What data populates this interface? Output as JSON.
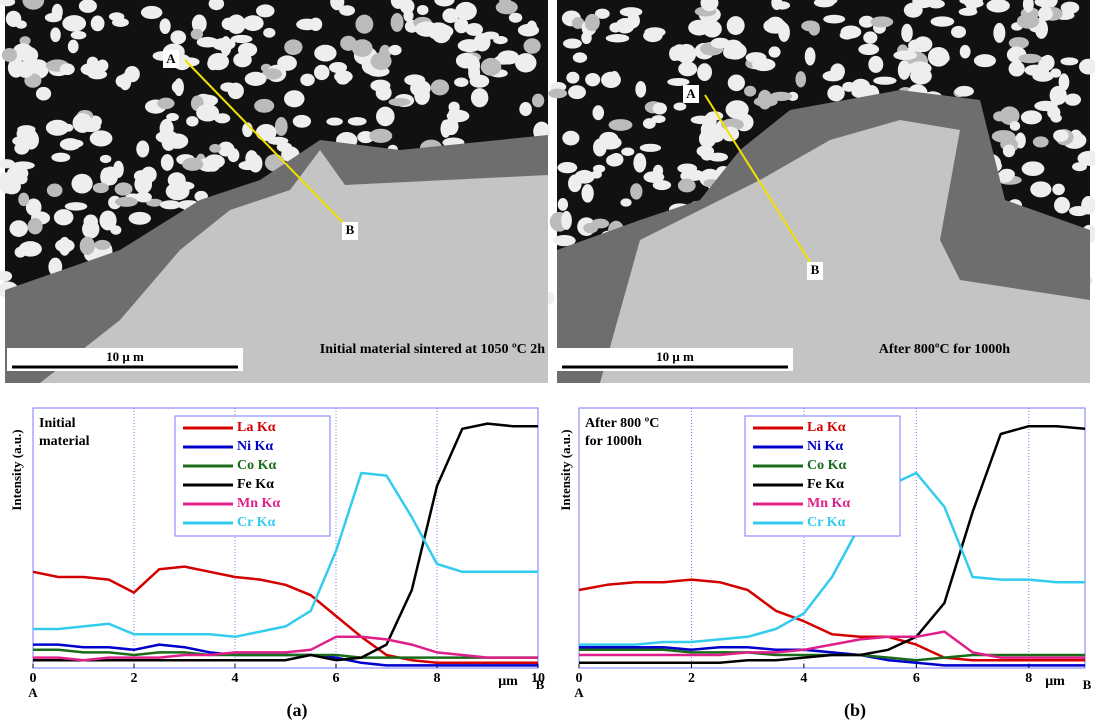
{
  "images": [
    {
      "caption": "Initial material sintered at 1050 ºC 2h",
      "scale_label": "10 μ m",
      "point_a": "A",
      "point_b": "B"
    },
    {
      "caption": "After 800ºC for 1000h",
      "scale_label": "10 μ m",
      "point_a": "A",
      "point_b": "B"
    }
  ],
  "panels": [
    "(a)",
    "(b)"
  ],
  "chart_data": [
    {
      "type": "line",
      "ylabel": "Intensity (a.u.)",
      "xlabel": "μm",
      "x_start": "A",
      "x_end": "B",
      "annotation": [
        "Initial",
        "material"
      ],
      "x": [
        0,
        0.5,
        1,
        1.5,
        2,
        2.5,
        3,
        3.5,
        4,
        4.5,
        5,
        5.5,
        6,
        6.5,
        7,
        7.5,
        8,
        8.5,
        9,
        9.5,
        10
      ],
      "xlim": [
        0,
        10
      ],
      "xticks": [
        0,
        2,
        4,
        6,
        8,
        10
      ],
      "ylim": [
        0,
        100
      ],
      "grid": true,
      "series": [
        {
          "name": "La Kα",
          "color": "#d40000",
          "values": [
            37,
            35,
            35,
            34,
            29,
            38,
            39,
            37,
            35,
            34,
            32,
            28,
            20,
            12,
            5,
            3,
            2,
            2,
            2,
            2,
            2
          ]
        },
        {
          "name": "Ni Kα",
          "color": "#0000cc",
          "values": [
            9,
            9,
            8,
            8,
            7,
            9,
            8,
            6,
            5,
            5,
            5,
            5,
            4,
            2,
            1,
            1,
            1,
            1,
            1,
            1,
            1
          ]
        },
        {
          "name": "Co Kα",
          "color": "#1a6b1a",
          "values": [
            7,
            7,
            6,
            6,
            5,
            6,
            6,
            5,
            5,
            5,
            5,
            5,
            5,
            4,
            4,
            4,
            4,
            4,
            4,
            4,
            4
          ]
        },
        {
          "name": "Fe Kα",
          "color": "#000000",
          "values": [
            3,
            3,
            3,
            3,
            3,
            3,
            3,
            3,
            3,
            3,
            3,
            5,
            3,
            4,
            9,
            30,
            70,
            92,
            94,
            93,
            93
          ]
        },
        {
          "name": "Mn Kα",
          "color": "#e0208a",
          "values": [
            4,
            4,
            3,
            4,
            4,
            4,
            5,
            5,
            6,
            6,
            6,
            7,
            12,
            12,
            11,
            9,
            6,
            5,
            4,
            4,
            4
          ]
        },
        {
          "name": "Cr Kα",
          "color": "#33ccee",
          "values": [
            15,
            15,
            16,
            17,
            13,
            13,
            13,
            13,
            12,
            14,
            16,
            22,
            45,
            75,
            74,
            58,
            40,
            37,
            37,
            37,
            37
          ]
        }
      ]
    },
    {
      "type": "line",
      "ylabel": "Intensity (a.u.)",
      "xlabel": "μm",
      "x_start": "A",
      "x_end": "B",
      "annotation": [
        "After 800 ºC",
        "for 1000h"
      ],
      "x": [
        0,
        0.5,
        1,
        1.5,
        2,
        2.5,
        3,
        3.5,
        4,
        4.5,
        5,
        5.5,
        6,
        6.5,
        7,
        7.5,
        8,
        8.5,
        9
      ],
      "xlim": [
        0,
        9
      ],
      "xticks": [
        0,
        2,
        4,
        6,
        8
      ],
      "ylim": [
        0,
        100
      ],
      "grid": true,
      "series": [
        {
          "name": "La Kα",
          "color": "#d40000",
          "values": [
            30,
            32,
            33,
            33,
            34,
            33,
            30,
            22,
            18,
            13,
            12,
            12,
            9,
            4,
            3,
            3,
            3,
            3,
            3
          ]
        },
        {
          "name": "Ni Kα",
          "color": "#0000cc",
          "values": [
            8,
            8,
            8,
            8,
            7,
            8,
            8,
            7,
            7,
            6,
            5,
            3,
            2,
            1,
            1,
            1,
            1,
            1,
            1
          ]
        },
        {
          "name": "Co Kα",
          "color": "#1a6b1a",
          "values": [
            7,
            7,
            7,
            7,
            6,
            6,
            6,
            5,
            5,
            5,
            5,
            4,
            3,
            4,
            5,
            5,
            5,
            5,
            5
          ]
        },
        {
          "name": "Fe Kα",
          "color": "#000000",
          "values": [
            2,
            2,
            2,
            2,
            2,
            2,
            3,
            3,
            4,
            5,
            5,
            7,
            12,
            25,
            60,
            90,
            93,
            93,
            92
          ]
        },
        {
          "name": "Mn Kα",
          "color": "#e0208a",
          "values": [
            5,
            5,
            5,
            5,
            5,
            5,
            6,
            6,
            7,
            9,
            11,
            12,
            12,
            14,
            6,
            4,
            4,
            4,
            4
          ]
        },
        {
          "name": "Cr Kα",
          "color": "#33ccee",
          "values": [
            9,
            9,
            9,
            10,
            10,
            11,
            12,
            15,
            21,
            35,
            55,
            70,
            75,
            62,
            35,
            34,
            34,
            33,
            33
          ]
        }
      ]
    }
  ]
}
